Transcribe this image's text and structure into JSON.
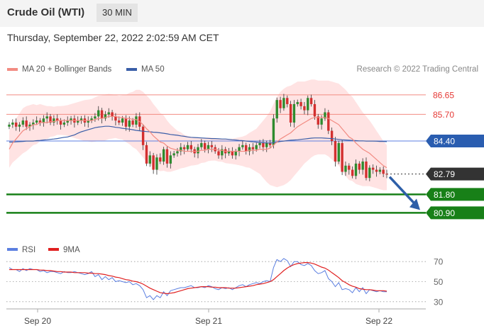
{
  "header": {
    "title": "Crude Oil (WTI)",
    "timeframe": "30 MIN"
  },
  "datetime": "Thursday, September 22, 2022 2:02:59 AM CET",
  "legend": {
    "ma20_bb": "MA 20 + Bollinger Bands",
    "ma50": "MA 50",
    "ma20_color": "#f28b82",
    "ma50_color": "#3a5ea8"
  },
  "research": "Research © 2022 Trading Central",
  "colors": {
    "bull": "#2e8b2e",
    "bear": "#d32f2f",
    "band": "#ffe3e3",
    "support": "#188018",
    "current": "#333333",
    "arrow": "#2e5fa8"
  },
  "chart_data": [
    {
      "type": "candlestick",
      "x_ticks": [
        "Sep 20",
        "Sep 21",
        "Sep 22"
      ],
      "ylim": [
        79.6,
        87.2
      ],
      "levels": [
        {
          "value": 86.65,
          "label": "86.65",
          "kind": "resistance"
        },
        {
          "value": 85.7,
          "label": "85.70",
          "kind": "resistance"
        },
        {
          "value": 84.4,
          "label": "84.40",
          "kind": "ma"
        },
        {
          "value": 82.79,
          "label": "82.79",
          "kind": "current"
        },
        {
          "value": 81.8,
          "label": "81.80",
          "kind": "support"
        },
        {
          "value": 80.9,
          "label": "80.90",
          "kind": "support"
        }
      ],
      "close": [
        85.2,
        85.3,
        85.1,
        85.2,
        85.4,
        85.1,
        85.2,
        85.3,
        85.4,
        85.3,
        85.5,
        85.6,
        85.3,
        85.5,
        85.4,
        85.2,
        85.3,
        85.4,
        85.5,
        85.3,
        85.4,
        85.5,
        85.3,
        85.4,
        85.5,
        85.6,
        85.9,
        85.5,
        85.7,
        85.8,
        85.6,
        85.4,
        85.3,
        85.5,
        85.1,
        85.4,
        85.2,
        85.6,
        85.1,
        84.2,
        83.3,
        83.7,
        83.0,
        83.6,
        83.4,
        84.0,
        83.3,
        83.7,
        83.8,
        83.9,
        84.1,
        84.0,
        84.2,
        84.0,
        83.8,
        84.1,
        84.3,
        84.0,
        84.2,
        84.1,
        83.9,
        83.7,
        84.0,
        83.8,
        83.9,
        83.7,
        83.9,
        84.1,
        84.2,
        83.9,
        84.1,
        84.0,
        84.2,
        84.3,
        84.1,
        84.3,
        84.2,
        85.5,
        86.4,
        86.0,
        86.5,
        86.2,
        85.3,
        86.2,
        86.3,
        86.1,
        85.9,
        86.5,
        86.2,
        85.6,
        85.2,
        85.5,
        85.8,
        84.9,
        84.4,
        83.4,
        84.3,
        82.9,
        83.2,
        83.0,
        82.7,
        83.3,
        83.0,
        83.4,
        82.6,
        83.1,
        83.0,
        82.9,
        83.0,
        82.8,
        82.79
      ],
      "ma20": [
        84.0,
        84.3,
        84.5,
        84.7,
        84.9,
        85.0,
        85.1,
        85.2,
        85.2,
        85.3,
        85.3,
        85.3,
        85.35,
        85.35,
        85.4,
        85.4,
        85.4,
        85.4,
        85.4,
        85.4,
        85.4,
        85.4,
        85.4,
        85.4,
        85.4,
        85.45,
        85.5,
        85.5,
        85.55,
        85.6,
        85.6,
        85.6,
        85.55,
        85.55,
        85.5,
        85.5,
        85.45,
        85.45,
        85.35,
        85.2,
        85.0,
        84.85,
        84.65,
        84.5,
        84.35,
        84.3,
        84.15,
        84.05,
        84.0,
        83.95,
        83.95,
        83.9,
        83.9,
        83.9,
        83.9,
        83.9,
        83.95,
        83.95,
        84.0,
        84.0,
        84.0,
        83.95,
        83.95,
        83.9,
        83.9,
        83.9,
        83.9,
        83.9,
        83.9,
        83.9,
        83.95,
        83.95,
        83.95,
        84.0,
        84.0,
        84.0,
        84.05,
        84.2,
        84.35,
        84.5,
        84.6,
        84.7,
        84.8,
        84.95,
        85.1,
        85.2,
        85.3,
        85.4,
        85.5,
        85.55,
        85.55,
        85.55,
        85.55,
        85.5,
        85.4,
        85.3,
        85.2,
        85.0,
        84.8,
        84.6,
        84.5,
        84.3,
        84.15,
        84.0,
        83.9,
        83.8,
        83.65,
        83.5,
        83.35,
        83.2,
        83.1
      ],
      "ma50": [
        84.35,
        84.35,
        84.36,
        84.37,
        84.38,
        84.4,
        84.4,
        84.4,
        84.42,
        84.43,
        84.45,
        84.46,
        84.48,
        84.5,
        84.52,
        84.55,
        84.58,
        84.6,
        84.65,
        84.7,
        84.78,
        84.85,
        84.9,
        84.95,
        85.0,
        85.05,
        85.08,
        85.1,
        85.12,
        85.12,
        85.1,
        85.07,
        85.05,
        85.02,
        85.0,
        84.98,
        84.95,
        84.92,
        84.9,
        84.88,
        84.86,
        84.85,
        84.83,
        84.82,
        84.8,
        84.78,
        84.75,
        84.72,
        84.7,
        84.68,
        84.65,
        84.63,
        84.6,
        84.58,
        84.57,
        84.56,
        84.55,
        84.54,
        84.53,
        84.52,
        84.52,
        84.51,
        84.5,
        84.5,
        84.48,
        84.46,
        84.45,
        84.43,
        84.42,
        84.4,
        84.38,
        84.36,
        84.35,
        84.33,
        84.32,
        84.31,
        84.3,
        84.32,
        84.35,
        84.38,
        84.4,
        84.42,
        84.44,
        84.45,
        84.46,
        84.48,
        84.5,
        84.52,
        84.54,
        84.55,
        84.55,
        84.55,
        84.54,
        84.53,
        84.52,
        84.5,
        84.48,
        84.46,
        84.45,
        84.44,
        84.43,
        84.42,
        84.41,
        84.41,
        84.4,
        84.4,
        84.4,
        84.39,
        84.38,
        84.38,
        84.37
      ],
      "bb_width": [
        0.9,
        0.95,
        1.0,
        1.05,
        1.1,
        1.1,
        1.05,
        1.0,
        0.95,
        0.9,
        0.85,
        0.8,
        0.75,
        0.72,
        0.7,
        0.7,
        0.72,
        0.75,
        0.8,
        0.85,
        0.9,
        0.95,
        1.0,
        1.02,
        1.05,
        1.08,
        1.1,
        1.12,
        1.12,
        1.1,
        1.08,
        1.05,
        1.05,
        1.08,
        1.15,
        1.25,
        1.35,
        1.45,
        1.55,
        1.6,
        1.62,
        1.6,
        1.55,
        1.5,
        1.42,
        1.35,
        1.25,
        1.15,
        1.05,
        0.95,
        0.88,
        0.8,
        0.75,
        0.7,
        0.68,
        0.65,
        0.62,
        0.6,
        0.58,
        0.56,
        0.55,
        0.55,
        0.56,
        0.58,
        0.6,
        0.62,
        0.65,
        0.68,
        0.72,
        0.78,
        0.85,
        0.95,
        1.05,
        1.2,
        1.4,
        1.6,
        1.8,
        2.0,
        2.2,
        2.3,
        2.35,
        2.35,
        2.3,
        2.25,
        2.2,
        2.1,
        2.0,
        1.95,
        1.9,
        1.85,
        1.8,
        1.8,
        1.8,
        1.85,
        1.9,
        1.95,
        2.0,
        2.05,
        2.1,
        2.1,
        2.05,
        2.0,
        1.9,
        1.8,
        1.7,
        1.6,
        1.5,
        1.4,
        1.3,
        1.2,
        1.1
      ]
    },
    {
      "type": "line",
      "legend": [
        "RSI",
        "9MA"
      ],
      "series_colors": [
        "#5b7fe0",
        "#e02020"
      ],
      "y_ticks": [
        30,
        50,
        70
      ],
      "ylim": [
        20,
        80
      ],
      "x_ticks": [
        "Sep 20",
        "Sep 21",
        "Sep 22"
      ],
      "rsi": [
        64,
        62,
        62,
        60,
        63,
        61,
        63,
        62,
        62,
        60,
        61,
        59,
        60,
        60,
        59,
        58,
        60,
        59,
        59,
        60,
        59,
        58,
        57,
        58,
        60,
        55,
        57,
        52,
        55,
        52,
        54,
        50,
        51,
        50,
        49,
        50,
        47,
        48,
        46,
        42,
        34,
        36,
        32,
        36,
        34,
        40,
        36,
        41,
        42,
        43,
        44,
        44,
        45,
        46,
        44,
        44,
        45,
        44,
        46,
        45,
        43,
        42,
        44,
        43,
        44,
        42,
        44,
        46,
        47,
        45,
        47,
        48,
        49,
        48,
        50,
        51,
        50,
        64,
        72,
        70,
        73,
        71,
        65,
        70,
        70,
        67,
        66,
        68,
        66,
        61,
        58,
        59,
        61,
        53,
        50,
        45,
        49,
        42,
        43,
        42,
        39,
        44,
        40,
        44,
        38,
        42,
        41,
        40,
        41,
        40,
        40
      ],
      "ma9": [
        62,
        62,
        62,
        62,
        62,
        62,
        62,
        62,
        62,
        61.5,
        61.5,
        61,
        61,
        60.5,
        60,
        60,
        59.5,
        59.5,
        59.5,
        59,
        59,
        59,
        59,
        58.5,
        58.5,
        58,
        58,
        57.5,
        57,
        56,
        55.5,
        54.5,
        54,
        53,
        52,
        51.5,
        50.5,
        50,
        49,
        47.5,
        45.5,
        43.5,
        42,
        40.5,
        39,
        38.5,
        38,
        38.5,
        39,
        40,
        41,
        42,
        43,
        43.5,
        44,
        44.5,
        45,
        45,
        45,
        44.5,
        44.5,
        44,
        44,
        44,
        43.5,
        43.5,
        43.5,
        44,
        44.5,
        45,
        45.5,
        46,
        47,
        47.5,
        48,
        49,
        50,
        52,
        55,
        58,
        61,
        63.5,
        65.5,
        67,
        68,
        68.5,
        69,
        69,
        68.5,
        67.5,
        66,
        64.5,
        63.5,
        61.5,
        59,
        56.5,
        54,
        51,
        49,
        47,
        45.5,
        44.5,
        43,
        42.5,
        42,
        42,
        41.5,
        41,
        41,
        41,
        40.5
      ]
    }
  ]
}
